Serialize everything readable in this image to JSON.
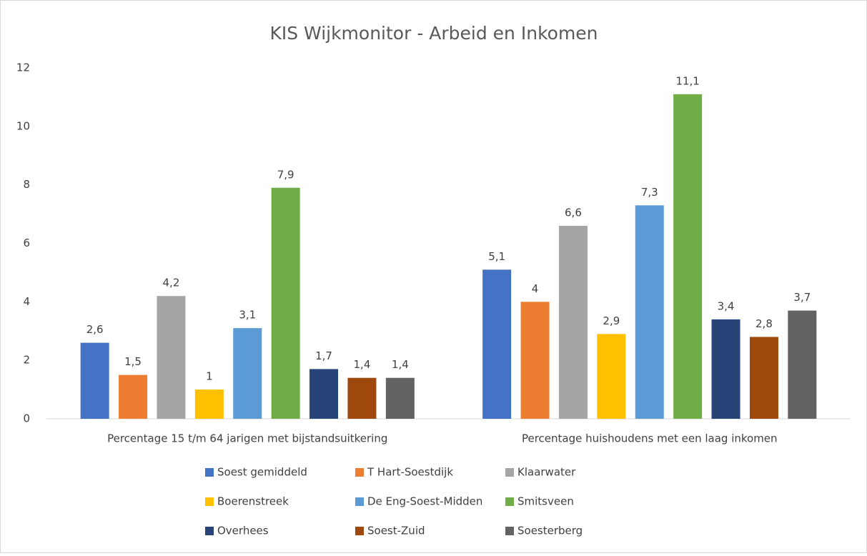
{
  "chart_data": {
    "type": "bar",
    "title": "KIS Wijkmonitor - Arbeid en Inkomen",
    "categories": [
      "Percentage 15 t/m 64 jarigen met bijstandsuitkering",
      "Percentage huishoudens met een laag inkomen"
    ],
    "series": [
      {
        "name": "Soest gemiddeld",
        "color": "#4472c4",
        "values": [
          2.6,
          5.1
        ],
        "value_labels": [
          "2,6",
          "5,1"
        ]
      },
      {
        "name": "T Hart-Soestdijk",
        "color": "#ed7d31",
        "values": [
          1.5,
          4
        ],
        "value_labels": [
          "1,5",
          "4"
        ]
      },
      {
        "name": "Klaarwater",
        "color": "#a5a5a5",
        "values": [
          4.2,
          6.6
        ],
        "value_labels": [
          "4,2",
          "6,6"
        ]
      },
      {
        "name": "Boerenstreek",
        "color": "#ffc000",
        "values": [
          1,
          2.9
        ],
        "value_labels": [
          "1",
          "2,9"
        ]
      },
      {
        "name": "De Eng-Soest-Midden",
        "color": "#5b9bd5",
        "values": [
          3.1,
          7.3
        ],
        "value_labels": [
          "3,1",
          "7,3"
        ]
      },
      {
        "name": "Smitsveen",
        "color": "#70ad47",
        "values": [
          7.9,
          11.1
        ],
        "value_labels": [
          "7,9",
          "11,1"
        ]
      },
      {
        "name": "Overhees",
        "color": "#264478",
        "values": [
          1.7,
          3.4
        ],
        "value_labels": [
          "1,7",
          "3,4"
        ]
      },
      {
        "name": "Soest-Zuid",
        "color": "#9e480e",
        "values": [
          1.4,
          2.8
        ],
        "value_labels": [
          "1,4",
          "2,8"
        ]
      },
      {
        "name": "Soesterberg",
        "color": "#636363",
        "values": [
          1.4,
          3.7
        ],
        "value_labels": [
          "1,4",
          "3,7"
        ]
      }
    ],
    "ylim": [
      0,
      12
    ],
    "yticks": [
      0,
      2,
      4,
      6,
      8,
      10,
      12
    ],
    "grid": false,
    "legend": "bottom"
  }
}
